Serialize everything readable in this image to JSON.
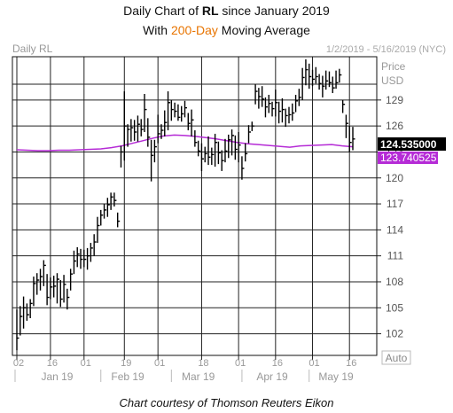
{
  "header": {
    "line1_prefix": "Daily Chart of ",
    "line1_ticker": "RL",
    "line1_suffix": " since January 2019",
    "line2_prefix": "With ",
    "line2_highlight": "200-Day",
    "line2_suffix": " Moving Average"
  },
  "footer": {
    "credit": "Chart courtesy of Thomson Reuters Eikon"
  },
  "chart_data": {
    "type": "ohlc",
    "instrument_label": "Daily RL",
    "date_range": "1/2/2019 - 5/16/2019 (NYC)",
    "price_axis_title": [
      "Price",
      "USD"
    ],
    "y_ticks": [
      102,
      105,
      108,
      111,
      114,
      117,
      120,
      123,
      126,
      129
    ],
    "ylim": [
      99.5,
      134
    ],
    "scale_button": "Auto",
    "x_day_ticks": [
      "02",
      "16",
      "01",
      "19",
      "01",
      "18",
      "01",
      "16",
      "01",
      "16"
    ],
    "x_month_ticks": [
      "Jan 19",
      "Feb 19",
      "Mar 19",
      "Apr 19",
      "May 19"
    ],
    "last_price_label": "124.535000",
    "ma_label": "123.740525",
    "colors": {
      "price_label_bg": "#000000",
      "ma_line": "#b52bd6",
      "ma_label_bg": "#b52bd6",
      "bars": "#000000",
      "header_accent": "#e87400"
    },
    "bars": [
      {
        "h": 104.8,
        "l": 100.1,
        "c": 101.5
      },
      {
        "h": 105.2,
        "l": 101.8,
        "c": 104.0
      },
      {
        "h": 106.3,
        "l": 102.6,
        "c": 105.0
      },
      {
        "h": 105.5,
        "l": 103.5,
        "c": 104.2
      },
      {
        "h": 106.0,
        "l": 103.8,
        "c": 105.5
      },
      {
        "h": 108.6,
        "l": 105.2,
        "c": 107.8
      },
      {
        "h": 109.0,
        "l": 106.5,
        "c": 108.2
      },
      {
        "h": 109.5,
        "l": 107.0,
        "c": 108.6
      },
      {
        "h": 110.5,
        "l": 107.5,
        "c": 109.9
      },
      {
        "h": 108.9,
        "l": 105.3,
        "c": 106.2
      },
      {
        "h": 108.5,
        "l": 106.0,
        "c": 107.4
      },
      {
        "h": 108.7,
        "l": 106.2,
        "c": 107.5
      },
      {
        "h": 109.0,
        "l": 105.5,
        "c": 108.3
      },
      {
        "h": 108.2,
        "l": 105.1,
        "c": 106.0
      },
      {
        "h": 108.8,
        "l": 105.6,
        "c": 107.7
      },
      {
        "h": 107.2,
        "l": 104.8,
        "c": 106.2
      },
      {
        "h": 109.5,
        "l": 107.0,
        "c": 108.9
      },
      {
        "h": 111.6,
        "l": 108.9,
        "c": 110.4
      },
      {
        "h": 112.0,
        "l": 109.7,
        "c": 111.2
      },
      {
        "h": 111.8,
        "l": 109.5,
        "c": 110.6
      },
      {
        "h": 111.7,
        "l": 109.7,
        "c": 110.6
      },
      {
        "h": 111.9,
        "l": 109.4,
        "c": 111.0
      },
      {
        "h": 112.5,
        "l": 110.3,
        "c": 111.9
      },
      {
        "h": 113.5,
        "l": 111.0,
        "c": 112.6
      },
      {
        "h": 115.5,
        "l": 112.5,
        "c": 114.5
      },
      {
        "h": 116.3,
        "l": 114.5,
        "c": 115.7
      },
      {
        "h": 117.0,
        "l": 115.3,
        "c": 116.3
      },
      {
        "h": 117.7,
        "l": 115.5,
        "c": 116.9
      },
      {
        "h": 118.3,
        "l": 116.3,
        "c": 117.8
      },
      {
        "h": 118.3,
        "l": 116.7,
        "c": 117.4
      },
      {
        "h": 116.0,
        "l": 114.3,
        "c": 115.0
      },
      {
        "h": 123.7,
        "l": 121.2,
        "c": 123.0
      },
      {
        "h": 130.0,
        "l": 122.0,
        "c": 126.0
      },
      {
        "h": 126.2,
        "l": 123.6,
        "c": 125.6
      },
      {
        "h": 126.8,
        "l": 124.2,
        "c": 125.8
      },
      {
        "h": 126.7,
        "l": 124.3,
        "c": 125.3
      },
      {
        "h": 127.2,
        "l": 124.2,
        "c": 126.2
      },
      {
        "h": 126.8,
        "l": 124.8,
        "c": 125.6
      },
      {
        "h": 129.7,
        "l": 125.3,
        "c": 127.9
      },
      {
        "h": 126.9,
        "l": 123.6,
        "c": 124.7
      },
      {
        "h": 124.4,
        "l": 119.6,
        "c": 122.6
      },
      {
        "h": 124.4,
        "l": 121.8,
        "c": 123.6
      },
      {
        "h": 127.3,
        "l": 124.0,
        "c": 125.1
      },
      {
        "h": 126.2,
        "l": 124.5,
        "c": 125.5
      },
      {
        "h": 127.8,
        "l": 124.8,
        "c": 126.4
      },
      {
        "h": 130.0,
        "l": 125.5,
        "c": 128.7
      },
      {
        "h": 129.0,
        "l": 126.6,
        "c": 127.9
      },
      {
        "h": 128.7,
        "l": 127.0,
        "c": 127.7
      },
      {
        "h": 128.5,
        "l": 126.6,
        "c": 127.0
      },
      {
        "h": 128.3,
        "l": 126.5,
        "c": 127.4
      },
      {
        "h": 128.9,
        "l": 127.0,
        "c": 128.1
      },
      {
        "h": 127.5,
        "l": 125.5,
        "c": 126.3
      },
      {
        "h": 127.9,
        "l": 124.8,
        "c": 126.7
      },
      {
        "h": 125.5,
        "l": 123.6,
        "c": 124.1
      },
      {
        "h": 124.3,
        "l": 122.5,
        "c": 123.1
      },
      {
        "h": 124.0,
        "l": 120.8,
        "c": 122.2
      },
      {
        "h": 123.6,
        "l": 121.8,
        "c": 122.8
      },
      {
        "h": 124.8,
        "l": 121.5,
        "c": 122.4
      },
      {
        "h": 123.5,
        "l": 121.5,
        "c": 122.7
      },
      {
        "h": 125.1,
        "l": 121.3,
        "c": 124.1
      },
      {
        "h": 124.2,
        "l": 121.6,
        "c": 122.9
      },
      {
        "h": 123.2,
        "l": 120.8,
        "c": 122.0
      },
      {
        "h": 124.5,
        "l": 121.8,
        "c": 123.1
      },
      {
        "h": 125.0,
        "l": 122.3,
        "c": 124.4
      },
      {
        "h": 125.6,
        "l": 122.6,
        "c": 124.9
      },
      {
        "h": 124.9,
        "l": 122.1,
        "c": 123.3
      },
      {
        "h": 125.3,
        "l": 121.8,
        "c": 123.8
      },
      {
        "h": 122.5,
        "l": 119.8,
        "c": 121.1
      },
      {
        "h": 124.0,
        "l": 121.9,
        "c": 122.8
      },
      {
        "h": 126.1,
        "l": 124.0,
        "c": 125.3
      },
      {
        "h": 126.5,
        "l": 125.4,
        "c": 126.0
      },
      {
        "h": 130.8,
        "l": 128.5,
        "c": 130.0
      },
      {
        "h": 130.4,
        "l": 128.0,
        "c": 129.4
      },
      {
        "h": 130.6,
        "l": 128.2,
        "c": 129.1
      },
      {
        "h": 129.3,
        "l": 127.0,
        "c": 128.2
      },
      {
        "h": 129.6,
        "l": 127.5,
        "c": 128.6
      },
      {
        "h": 128.8,
        "l": 127.1,
        "c": 128.0
      },
      {
        "h": 130.2,
        "l": 127.1,
        "c": 128.7
      },
      {
        "h": 128.8,
        "l": 126.3,
        "c": 127.7
      },
      {
        "h": 129.2,
        "l": 126.4,
        "c": 127.9
      },
      {
        "h": 128.0,
        "l": 125.9,
        "c": 127.2
      },
      {
        "h": 128.2,
        "l": 126.3,
        "c": 127.3
      },
      {
        "h": 128.6,
        "l": 126.6,
        "c": 127.5
      },
      {
        "h": 129.6,
        "l": 127.6,
        "c": 128.9
      },
      {
        "h": 130.3,
        "l": 128.3,
        "c": 129.3
      },
      {
        "h": 132.7,
        "l": 129.0,
        "c": 131.6
      },
      {
        "h": 133.7,
        "l": 130.7,
        "c": 132.5
      },
      {
        "h": 133.2,
        "l": 130.3,
        "c": 131.7
      },
      {
        "h": 132.5,
        "l": 130.6,
        "c": 131.4
      },
      {
        "h": 132.8,
        "l": 130.9,
        "c": 131.7
      },
      {
        "h": 132.0,
        "l": 130.2,
        "c": 130.9
      },
      {
        "h": 131.8,
        "l": 129.3,
        "c": 130.6
      },
      {
        "h": 132.4,
        "l": 130.2,
        "c": 131.2
      },
      {
        "h": 132.3,
        "l": 130.5,
        "c": 131.0
      },
      {
        "h": 131.7,
        "l": 129.8,
        "c": 130.4
      },
      {
        "h": 132.4,
        "l": 130.3,
        "c": 131.0
      },
      {
        "h": 132.6,
        "l": 131.0,
        "c": 131.9
      },
      {
        "h": 129.0,
        "l": 127.5,
        "c": 128.5
      },
      {
        "h": 127.3,
        "l": 124.6,
        "c": 126.3
      },
      {
        "h": 126.0,
        "l": 123.0,
        "c": 124.1
      },
      {
        "h": 125.9,
        "l": 123.2,
        "c": 124.5
      }
    ],
    "ma_200": [
      123.25,
      123.2,
      123.15,
      123.15,
      123.2,
      123.2,
      123.25,
      123.3,
      123.35,
      123.5,
      123.7,
      124.0,
      124.3,
      124.6,
      124.85,
      124.95,
      124.9,
      124.8,
      124.65,
      124.5,
      124.3,
      124.1,
      123.95,
      123.85,
      123.75,
      123.65,
      123.55,
      123.7,
      123.75,
      123.8,
      123.85,
      123.7,
      123.6
    ]
  }
}
